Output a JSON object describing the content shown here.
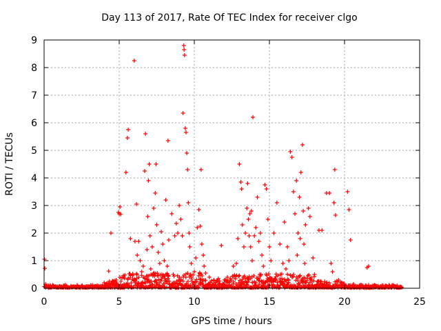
{
  "chart_data": {
    "type": "scatter",
    "title": "Day 113 of 2017, Rate Of TEC Index for receiver clgo",
    "xlabel": "GPS time / hours",
    "ylabel": "ROTI / TECUs",
    "xlim": [
      0,
      25
    ],
    "ylim": [
      0,
      9
    ],
    "x_ticks": [
      0,
      5,
      10,
      15,
      20,
      25
    ],
    "y_ticks": [
      0,
      1,
      2,
      3,
      4,
      5,
      6,
      7,
      8,
      9
    ],
    "grid": true,
    "legend": "none",
    "marker": "plus",
    "color": "#ff0000",
    "series": [
      {
        "points": [
          [
            0.02,
            1.05
          ],
          [
            0.05,
            0.72
          ],
          [
            0.1,
            0.15
          ],
          [
            0.3,
            0.08
          ],
          [
            0.6,
            0.1
          ],
          [
            1.0,
            0.07
          ],
          [
            1.5,
            0.09
          ],
          [
            2.0,
            0.06
          ],
          [
            2.5,
            0.08
          ],
          [
            3.0,
            0.07
          ],
          [
            3.5,
            0.09
          ],
          [
            4.0,
            0.2
          ],
          [
            4.1,
            0.15
          ],
          [
            4.3,
            0.62
          ],
          [
            4.45,
            2.0
          ],
          [
            4.6,
            0.25
          ],
          [
            4.8,
            0.3
          ],
          [
            4.95,
            2.75
          ],
          [
            5.0,
            2.7
          ],
          [
            5.05,
            2.95
          ],
          [
            5.1,
            2.68
          ],
          [
            5.3,
            0.4
          ],
          [
            5.45,
            4.2
          ],
          [
            5.55,
            5.45
          ],
          [
            5.6,
            5.75
          ],
          [
            5.75,
            1.8
          ],
          [
            5.9,
            0.5
          ],
          [
            6.0,
            8.25
          ],
          [
            6.05,
            1.7
          ],
          [
            6.15,
            3.05
          ],
          [
            6.2,
            1.2
          ],
          [
            6.3,
            1.7
          ],
          [
            6.4,
            1.0
          ],
          [
            6.5,
            0.6
          ],
          [
            6.6,
            0.8
          ],
          [
            6.7,
            4.25
          ],
          [
            6.75,
            5.6
          ],
          [
            6.85,
            1.4
          ],
          [
            6.9,
            2.6
          ],
          [
            6.95,
            3.9
          ],
          [
            7.0,
            4.5
          ],
          [
            7.05,
            1.9
          ],
          [
            7.1,
            0.7
          ],
          [
            7.2,
            1.5
          ],
          [
            7.3,
            2.9
          ],
          [
            7.4,
            3.45
          ],
          [
            7.45,
            4.5
          ],
          [
            7.5,
            2.3
          ],
          [
            7.6,
            1.3
          ],
          [
            7.7,
            0.9
          ],
          [
            7.8,
            2.05
          ],
          [
            7.9,
            1.6
          ],
          [
            8.0,
            1.0
          ],
          [
            8.1,
            3.2
          ],
          [
            8.2,
            0.8
          ],
          [
            8.25,
            5.35
          ],
          [
            8.3,
            1.75
          ],
          [
            8.5,
            2.7
          ],
          [
            8.6,
            0.5
          ],
          [
            8.7,
            1.9
          ],
          [
            8.8,
            2.35
          ],
          [
            8.9,
            2.0
          ],
          [
            9.0,
            3.0
          ],
          [
            9.1,
            2.5
          ],
          [
            9.2,
            1.9
          ],
          [
            9.25,
            6.35
          ],
          [
            9.3,
            8.8
          ],
          [
            9.32,
            8.65
          ],
          [
            9.35,
            8.45
          ],
          [
            9.4,
            5.8
          ],
          [
            9.45,
            5.65
          ],
          [
            9.5,
            4.9
          ],
          [
            9.55,
            4.3
          ],
          [
            9.6,
            3.1
          ],
          [
            9.65,
            2.0
          ],
          [
            9.7,
            1.5
          ],
          [
            9.8,
            0.9
          ],
          [
            10.0,
            0.6
          ],
          [
            10.1,
            1.1
          ],
          [
            10.2,
            2.2
          ],
          [
            10.3,
            2.85
          ],
          [
            10.4,
            2.25
          ],
          [
            10.45,
            4.3
          ],
          [
            10.5,
            1.6
          ],
          [
            10.6,
            1.2
          ],
          [
            10.65,
            0.8
          ],
          [
            10.75,
            0.55
          ],
          [
            11.0,
            0.4
          ],
          [
            11.3,
            0.3
          ],
          [
            11.6,
            0.35
          ],
          [
            11.8,
            1.55
          ],
          [
            12.0,
            0.3
          ],
          [
            12.2,
            0.4
          ],
          [
            12.4,
            0.35
          ],
          [
            12.6,
            0.8
          ],
          [
            12.8,
            0.9
          ],
          [
            12.9,
            1.8
          ],
          [
            13.0,
            4.5
          ],
          [
            13.1,
            3.85
          ],
          [
            13.15,
            3.6
          ],
          [
            13.2,
            2.3
          ],
          [
            13.3,
            1.5
          ],
          [
            13.4,
            2.0
          ],
          [
            13.5,
            2.9
          ],
          [
            13.55,
            3.8
          ],
          [
            13.6,
            2.5
          ],
          [
            13.65,
            1.9
          ],
          [
            13.7,
            2.7
          ],
          [
            13.75,
            1.5
          ],
          [
            13.8,
            2.8
          ],
          [
            13.85,
            1.0
          ],
          [
            13.9,
            6.2
          ],
          [
            14.0,
            1.9
          ],
          [
            14.1,
            2.2
          ],
          [
            14.2,
            3.3
          ],
          [
            14.3,
            1.7
          ],
          [
            14.4,
            2.0
          ],
          [
            14.5,
            1.2
          ],
          [
            14.6,
            0.8
          ],
          [
            14.7,
            3.75
          ],
          [
            14.8,
            3.6
          ],
          [
            14.9,
            2.5
          ],
          [
            15.0,
            1.5
          ],
          [
            15.1,
            1.0
          ],
          [
            15.3,
            2.0
          ],
          [
            15.5,
            3.1
          ],
          [
            15.7,
            1.6
          ],
          [
            15.9,
            0.9
          ],
          [
            16.0,
            2.4
          ],
          [
            16.1,
            0.7
          ],
          [
            16.2,
            1.5
          ],
          [
            16.3,
            1.0
          ],
          [
            16.4,
            4.95
          ],
          [
            16.5,
            4.75
          ],
          [
            16.6,
            3.5
          ],
          [
            16.7,
            2.7
          ],
          [
            16.8,
            3.9
          ],
          [
            16.85,
            1.2
          ],
          [
            16.9,
            2.0
          ],
          [
            17.0,
            3.3
          ],
          [
            17.05,
            1.8
          ],
          [
            17.1,
            4.2
          ],
          [
            17.2,
            5.2
          ],
          [
            17.25,
            2.8
          ],
          [
            17.3,
            1.6
          ],
          [
            17.35,
            0.9
          ],
          [
            17.4,
            2.3
          ],
          [
            17.6,
            2.9
          ],
          [
            17.7,
            2.6
          ],
          [
            17.9,
            1.1
          ],
          [
            18.0,
            0.5
          ],
          [
            18.3,
            2.1
          ],
          [
            18.5,
            2.1
          ],
          [
            18.8,
            3.45
          ],
          [
            19.0,
            3.45
          ],
          [
            19.1,
            0.9
          ],
          [
            19.2,
            0.6
          ],
          [
            19.3,
            3.1
          ],
          [
            19.35,
            4.3
          ],
          [
            19.4,
            2.65
          ],
          [
            19.6,
            0.3
          ],
          [
            19.8,
            0.2
          ],
          [
            20.2,
            3.5
          ],
          [
            20.3,
            2.85
          ],
          [
            20.4,
            1.75
          ],
          [
            20.6,
            0.15
          ],
          [
            21.0,
            0.1
          ],
          [
            21.5,
            0.75
          ],
          [
            21.6,
            0.8
          ],
          [
            22.0,
            0.12
          ],
          [
            22.5,
            0.1
          ],
          [
            23.0,
            0.08
          ],
          [
            23.5,
            0.1
          ],
          [
            23.7,
            0.06
          ]
        ]
      }
    ]
  }
}
